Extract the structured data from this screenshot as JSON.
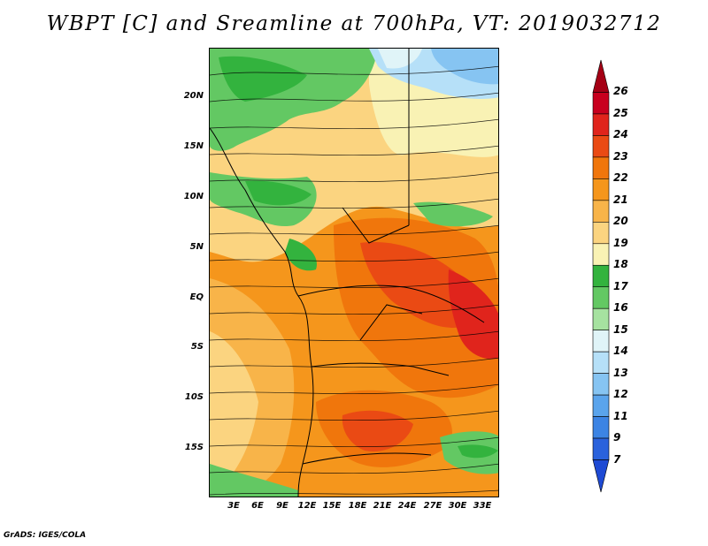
{
  "title": "WBPT [C] and Sreamline at 700hPa, VT: 2019032712",
  "footer": "GrADS: IGES/COLA",
  "lat_labels": [
    "20N",
    "15N",
    "10N",
    "5N",
    "EQ",
    "5S",
    "10S",
    "15S"
  ],
  "lon_labels": [
    "3E",
    "6E",
    "9E",
    "12E",
    "15E",
    "18E",
    "21E",
    "24E",
    "27E",
    "30E",
    "33E"
  ],
  "colorbar": {
    "labels": [
      "26",
      "25",
      "24",
      "23",
      "22",
      "21",
      "20",
      "19",
      "18",
      "17",
      "16",
      "15",
      "14",
      "13",
      "12",
      "11",
      "9",
      "7"
    ],
    "colors": [
      "#a50015",
      "#c8001e",
      "#e0241c",
      "#ea4a14",
      "#f0760c",
      "#f5961c",
      "#f8b449",
      "#fbd480",
      "#f9f2b4",
      "#33b33e",
      "#63c863",
      "#a6e2a0",
      "#e0f4f8",
      "#b6e0f8",
      "#86c4f2",
      "#5aa4ec",
      "#3c84e4",
      "#2a62dc",
      "#1e4ad4"
    ]
  }
}
